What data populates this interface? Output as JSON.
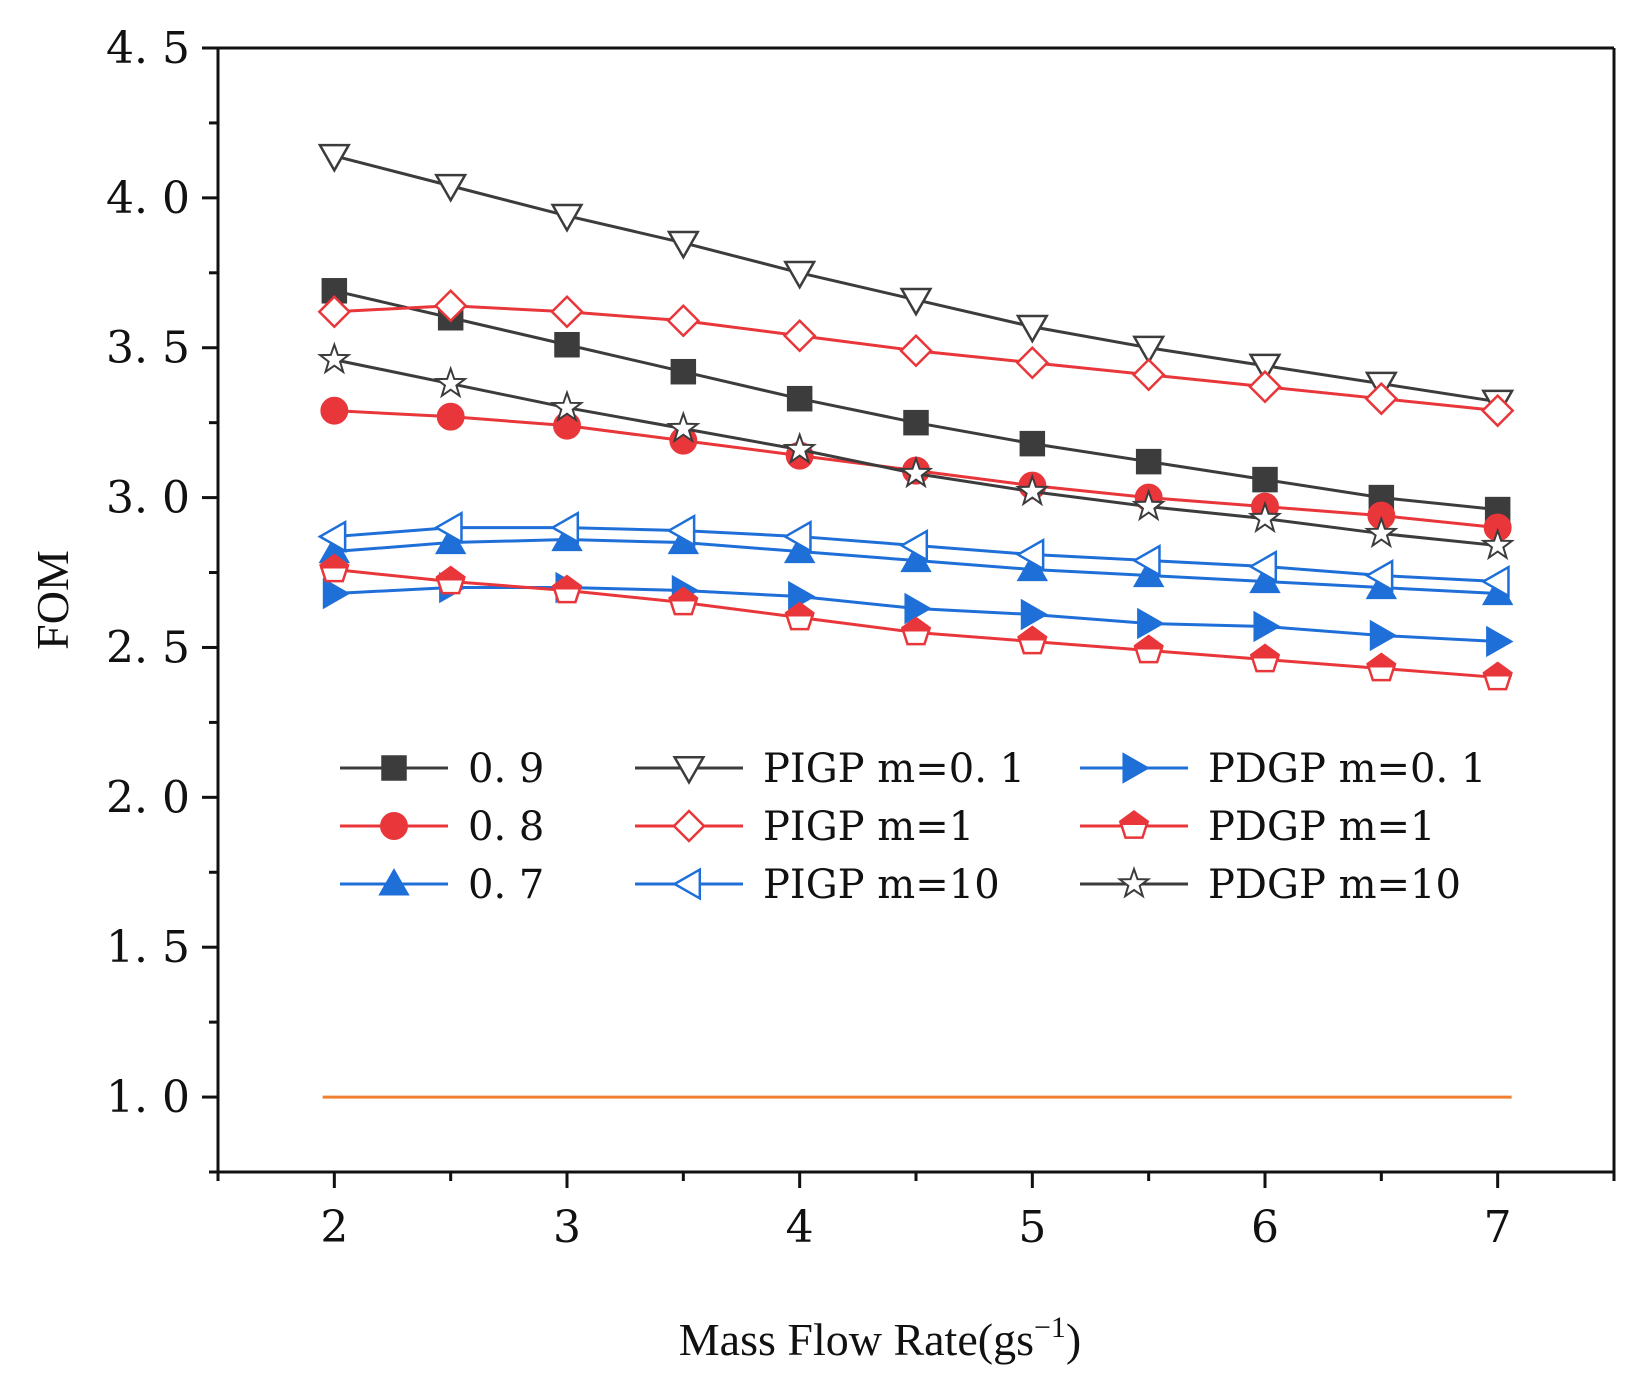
{
  "chart_data": {
    "type": "line",
    "title": "",
    "xlabel": "Mass Flow Rate(gs",
    "xlabel_sup": "−1",
    "xlabel_end": ")",
    "ylabel": "FOM",
    "xlim": [
      1.5,
      7.5
    ],
    "ylim": [
      0.75,
      4.5
    ],
    "xticks": [
      2,
      3,
      4,
      5,
      6,
      7
    ],
    "xtick_labels": [
      "2",
      "3",
      "4",
      "5",
      "6",
      "7"
    ],
    "yticks": [
      1.0,
      1.5,
      2.0,
      2.5,
      3.0,
      3.5,
      4.0,
      4.5
    ],
    "ytick_labels": [
      "1. 0",
      "1. 5",
      "2. 0",
      "2. 5",
      "3. 0",
      "3. 5",
      "4. 0",
      "4. 5"
    ],
    "grid": false,
    "legend_position": "center",
    "x": [
      2,
      2.5,
      3,
      3.5,
      4,
      4.5,
      5,
      5.5,
      6,
      6.5,
      7
    ],
    "reference_line": {
      "y": 1.0,
      "color": "#f08030"
    },
    "series": [
      {
        "name": "0. 9",
        "color": "#3c3c3c",
        "marker": "square-filled",
        "values": [
          3.69,
          3.6,
          3.51,
          3.42,
          3.33,
          3.25,
          3.18,
          3.12,
          3.06,
          3.0,
          2.96
        ]
      },
      {
        "name": "0. 8",
        "color": "#e8363a",
        "marker": "circle-filled",
        "values": [
          3.29,
          3.27,
          3.24,
          3.19,
          3.14,
          3.09,
          3.04,
          3.0,
          2.97,
          2.94,
          2.9
        ]
      },
      {
        "name": "0. 7",
        "color": "#1f6fd8",
        "marker": "triangle-up-filled",
        "values": [
          2.82,
          2.85,
          2.86,
          2.85,
          2.82,
          2.79,
          2.76,
          2.74,
          2.72,
          2.7,
          2.68
        ]
      },
      {
        "name": "PIGP  m=0. 1",
        "color": "#3c3c3c",
        "marker": "triangle-down-open",
        "values": [
          4.14,
          4.04,
          3.94,
          3.85,
          3.75,
          3.66,
          3.57,
          3.5,
          3.44,
          3.38,
          3.32
        ]
      },
      {
        "name": "PIGP  m=1",
        "color": "#e8363a",
        "marker": "diamond-open",
        "values": [
          3.62,
          3.64,
          3.62,
          3.59,
          3.54,
          3.49,
          3.45,
          3.41,
          3.37,
          3.33,
          3.29
        ]
      },
      {
        "name": "PIGP  m=10",
        "color": "#1f6fd8",
        "marker": "triangle-left-open",
        "values": [
          2.87,
          2.9,
          2.9,
          2.89,
          2.87,
          2.84,
          2.81,
          2.79,
          2.77,
          2.74,
          2.72
        ]
      },
      {
        "name": "PDGP  m=0. 1",
        "color": "#1f6fd8",
        "marker": "triangle-right-filled",
        "values": [
          2.68,
          2.7,
          2.7,
          2.69,
          2.67,
          2.63,
          2.61,
          2.58,
          2.57,
          2.54,
          2.52
        ]
      },
      {
        "name": "PDGP  m=1",
        "color": "#e8363a",
        "marker": "pentagon-half",
        "values": [
          2.76,
          2.72,
          2.69,
          2.65,
          2.6,
          2.55,
          2.52,
          2.49,
          2.46,
          2.43,
          2.4
        ]
      },
      {
        "name": "PDGP  m=10",
        "color": "#3c3c3c",
        "marker": "star-open",
        "values": [
          3.46,
          3.38,
          3.3,
          3.23,
          3.16,
          3.08,
          3.02,
          2.97,
          2.93,
          2.88,
          2.84
        ]
      }
    ]
  }
}
